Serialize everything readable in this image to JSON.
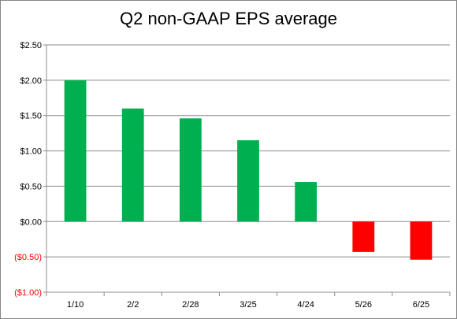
{
  "chart_data": {
    "type": "bar",
    "title": "Q2 non-GAAP EPS average",
    "xlabel": "",
    "ylabel": "",
    "categories": [
      "1/10",
      "2/2",
      "2/28",
      "3/25",
      "4/24",
      "5/26",
      "6/25"
    ],
    "values": [
      2.0,
      1.6,
      1.46,
      1.15,
      0.56,
      -0.43,
      -0.54
    ],
    "ylim": [
      -1.0,
      2.5
    ],
    "yticks": [
      2.5,
      2.0,
      1.5,
      1.0,
      0.5,
      0.0,
      -0.5,
      -1.0
    ],
    "ytick_labels": [
      "$2.50",
      "$2.00",
      "$1.50",
      "$1.00",
      "$0.50",
      "$0.00",
      "($0.50)",
      "($1.00)"
    ],
    "grid": true,
    "legend": "none",
    "colors": {
      "positive": "#00b050",
      "negative": "#ff0000",
      "negative_label": "#ff0000",
      "grid": "#8c8c8c",
      "axis": "#8c8c8c"
    }
  }
}
